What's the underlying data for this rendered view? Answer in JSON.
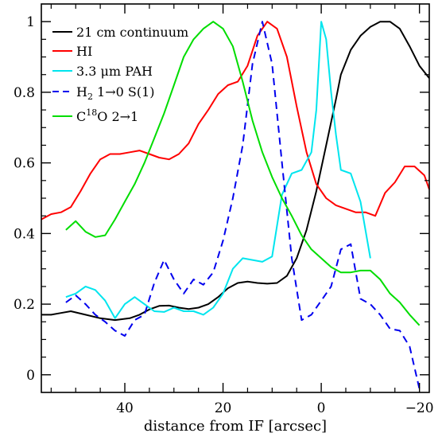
{
  "chart_data": {
    "type": "line",
    "xlabel": "distance from IF [arcsec]",
    "ylabel": "",
    "xlim": [
      57,
      -22
    ],
    "ylim": [
      -0.05,
      1.05
    ],
    "x_ticks": [
      40,
      20,
      0,
      -20
    ],
    "x_tick_labels": [
      "40",
      "20",
      "0",
      "−20"
    ],
    "y_ticks": [
      0,
      0.2,
      0.4,
      0.6,
      0.8,
      1
    ],
    "y_tick_labels": [
      "0",
      "0.2",
      "0.4",
      "0.6",
      "0.8",
      "1"
    ],
    "grid": false,
    "legend_position": "top-left",
    "series": [
      {
        "name": "21 cm continuum",
        "color": "#000000",
        "dash": "solid",
        "points": [
          [
            57,
            0.17
          ],
          [
            55,
            0.17
          ],
          [
            53,
            0.175
          ],
          [
            51,
            0.18
          ],
          [
            48,
            0.17
          ],
          [
            45,
            0.16
          ],
          [
            42,
            0.155
          ],
          [
            39,
            0.16
          ],
          [
            37,
            0.17
          ],
          [
            35,
            0.185
          ],
          [
            33,
            0.195
          ],
          [
            31,
            0.196
          ],
          [
            29,
            0.19
          ],
          [
            27,
            0.186
          ],
          [
            25,
            0.19
          ],
          [
            23,
            0.2
          ],
          [
            21,
            0.22
          ],
          [
            19,
            0.245
          ],
          [
            17,
            0.26
          ],
          [
            15,
            0.264
          ],
          [
            13,
            0.26
          ],
          [
            11,
            0.258
          ],
          [
            9,
            0.26
          ],
          [
            7,
            0.28
          ],
          [
            5,
            0.33
          ],
          [
            3,
            0.41
          ],
          [
            1,
            0.52
          ],
          [
            -1,
            0.65
          ],
          [
            -3,
            0.78
          ],
          [
            -4,
            0.85
          ],
          [
            -6,
            0.92
          ],
          [
            -8,
            0.96
          ],
          [
            -10,
            0.985
          ],
          [
            -12,
            1.0
          ],
          [
            -14,
            1.0
          ],
          [
            -16,
            0.98
          ],
          [
            -18,
            0.93
          ],
          [
            -20,
            0.875
          ],
          [
            -22,
            0.84
          ]
        ]
      },
      {
        "name": "HI",
        "color": "#ff0000",
        "dash": "solid",
        "points": [
          [
            57,
            0.44
          ],
          [
            55,
            0.455
          ],
          [
            53,
            0.46
          ],
          [
            51,
            0.475
          ],
          [
            49,
            0.52
          ],
          [
            47,
            0.57
          ],
          [
            45,
            0.61
          ],
          [
            43,
            0.625
          ],
          [
            41,
            0.625
          ],
          [
            39,
            0.63
          ],
          [
            37,
            0.635
          ],
          [
            35,
            0.625
          ],
          [
            33,
            0.615
          ],
          [
            31,
            0.61
          ],
          [
            29,
            0.625
          ],
          [
            27,
            0.655
          ],
          [
            25,
            0.71
          ],
          [
            23,
            0.75
          ],
          [
            21,
            0.795
          ],
          [
            19,
            0.82
          ],
          [
            17,
            0.83
          ],
          [
            15,
            0.875
          ],
          [
            13,
            0.96
          ],
          [
            11,
            1.0
          ],
          [
            9,
            0.98
          ],
          [
            7,
            0.9
          ],
          [
            5,
            0.76
          ],
          [
            3,
            0.63
          ],
          [
            1,
            0.54
          ],
          [
            -1,
            0.5
          ],
          [
            -3,
            0.48
          ],
          [
            -5,
            0.47
          ],
          [
            -7,
            0.46
          ],
          [
            -9,
            0.46
          ],
          [
            -11,
            0.45
          ],
          [
            -13,
            0.515
          ],
          [
            -15,
            0.545
          ],
          [
            -17,
            0.59
          ],
          [
            -19,
            0.59
          ],
          [
            -21,
            0.565
          ],
          [
            -22,
            0.525
          ]
        ]
      },
      {
        "name": "3.3 μm PAH",
        "color": "#00e5ee",
        "dash": "solid",
        "points": [
          [
            52,
            0.22
          ],
          [
            50,
            0.23
          ],
          [
            48,
            0.25
          ],
          [
            46,
            0.24
          ],
          [
            44,
            0.21
          ],
          [
            42,
            0.16
          ],
          [
            40,
            0.2
          ],
          [
            38,
            0.22
          ],
          [
            36,
            0.2
          ],
          [
            34,
            0.18
          ],
          [
            32,
            0.178
          ],
          [
            30,
            0.19
          ],
          [
            28,
            0.18
          ],
          [
            26,
            0.18
          ],
          [
            24,
            0.17
          ],
          [
            22,
            0.19
          ],
          [
            20,
            0.23
          ],
          [
            18,
            0.3
          ],
          [
            16,
            0.33
          ],
          [
            14,
            0.325
          ],
          [
            12,
            0.32
          ],
          [
            10,
            0.335
          ],
          [
            8,
            0.51
          ],
          [
            6,
            0.57
          ],
          [
            4,
            0.58
          ],
          [
            2,
            0.63
          ],
          [
            1,
            0.75
          ],
          [
            0,
            1.0
          ],
          [
            -1,
            0.95
          ],
          [
            -2,
            0.8
          ],
          [
            -3,
            0.68
          ],
          [
            -4,
            0.58
          ],
          [
            -6,
            0.57
          ],
          [
            -8,
            0.49
          ],
          [
            -10,
            0.33
          ]
        ]
      },
      {
        "name": "H₂ 1→0 S(1)",
        "color": "#0000ee",
        "dash": "dashed",
        "points": [
          [
            52,
            0.205
          ],
          [
            50,
            0.225
          ],
          [
            48,
            0.2
          ],
          [
            46,
            0.17
          ],
          [
            44,
            0.15
          ],
          [
            42,
            0.125
          ],
          [
            40,
            0.11
          ],
          [
            38,
            0.155
          ],
          [
            36,
            0.17
          ],
          [
            34,
            0.26
          ],
          [
            32,
            0.325
          ],
          [
            30,
            0.27
          ],
          [
            28,
            0.23
          ],
          [
            26,
            0.27
          ],
          [
            24,
            0.255
          ],
          [
            22,
            0.29
          ],
          [
            20,
            0.38
          ],
          [
            18,
            0.5
          ],
          [
            16,
            0.65
          ],
          [
            14,
            0.88
          ],
          [
            12,
            1.0
          ],
          [
            10,
            0.88
          ],
          [
            8,
            0.6
          ],
          [
            6,
            0.33
          ],
          [
            4,
            0.155
          ],
          [
            2,
            0.17
          ],
          [
            0,
            0.21
          ],
          [
            -2,
            0.25
          ],
          [
            -4,
            0.355
          ],
          [
            -6,
            0.37
          ],
          [
            -8,
            0.215
          ],
          [
            -10,
            0.2
          ],
          [
            -12,
            0.17
          ],
          [
            -14,
            0.13
          ],
          [
            -16,
            0.125
          ],
          [
            -18,
            0.08
          ],
          [
            -20,
            -0.04
          ]
        ]
      },
      {
        "name": "C¹⁸O 2→1",
        "color": "#00dd00",
        "dash": "solid",
        "points": [
          [
            52,
            0.41
          ],
          [
            50,
            0.435
          ],
          [
            48,
            0.405
          ],
          [
            46,
            0.39
          ],
          [
            44,
            0.395
          ],
          [
            42,
            0.44
          ],
          [
            40,
            0.49
          ],
          [
            38,
            0.54
          ],
          [
            36,
            0.6
          ],
          [
            34,
            0.67
          ],
          [
            32,
            0.74
          ],
          [
            30,
            0.82
          ],
          [
            28,
            0.9
          ],
          [
            26,
            0.95
          ],
          [
            24,
            0.98
          ],
          [
            22,
            1.0
          ],
          [
            20,
            0.98
          ],
          [
            18,
            0.93
          ],
          [
            16,
            0.83
          ],
          [
            14,
            0.72
          ],
          [
            12,
            0.63
          ],
          [
            10,
            0.56
          ],
          [
            8,
            0.5
          ],
          [
            6,
            0.45
          ],
          [
            4,
            0.395
          ],
          [
            2,
            0.355
          ],
          [
            0,
            0.33
          ],
          [
            -2,
            0.305
          ],
          [
            -4,
            0.29
          ],
          [
            -6,
            0.29
          ],
          [
            -8,
            0.295
          ],
          [
            -10,
            0.295
          ],
          [
            -12,
            0.27
          ],
          [
            -14,
            0.23
          ],
          [
            -16,
            0.205
          ],
          [
            -18,
            0.17
          ],
          [
            -20,
            0.14
          ]
        ]
      }
    ]
  },
  "legend": {
    "items": [
      {
        "label": "21 cm continuum"
      },
      {
        "label": "HI"
      },
      {
        "label": "3.3 μm PAH"
      },
      {
        "label_main": "H",
        "label_sub": "2",
        "label_rest": " 1→0 S(1)"
      },
      {
        "label_main": "C",
        "label_sup": "18",
        "label_rest": "O 2→1"
      }
    ]
  }
}
